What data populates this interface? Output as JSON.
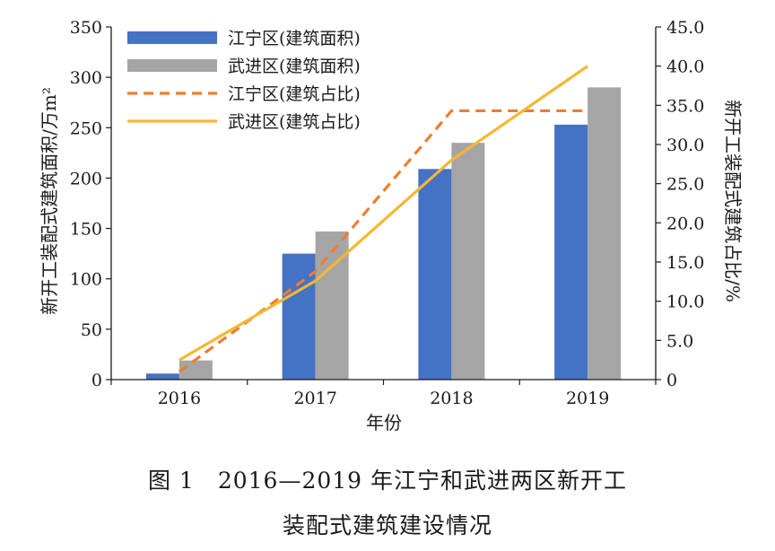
{
  "chart_data": {
    "type": "bar",
    "categories": [
      "2016",
      "2017",
      "2018",
      "2019"
    ],
    "xlabel": "年份",
    "ylabel_left": "新开工装配式建筑面积/万m²",
    "ylabel_right": "新开工装配式建筑占比/%",
    "y_left_lim": [
      0,
      350
    ],
    "y_left_ticks": [
      "0",
      "50",
      "100",
      "150",
      "200",
      "250",
      "300",
      "350"
    ],
    "y_right_lim": [
      0,
      45
    ],
    "y_right_ticks": [
      "0",
      "5.0",
      "10.0",
      "15.0",
      "20.0",
      "25.0",
      "30.0",
      "35.0",
      "40.0",
      "45.0"
    ],
    "grid": false,
    "legend_position": "top-left",
    "series": [
      {
        "name": "江宁区(建筑面积)",
        "kind": "bar",
        "axis": "left",
        "color": "#4472C4",
        "values": [
          6,
          125,
          209,
          253
        ]
      },
      {
        "name": "武进区(建筑面积)",
        "kind": "bar",
        "axis": "left",
        "color": "#A5A5A5",
        "values": [
          19,
          147,
          235,
          290
        ]
      },
      {
        "name": "江宁区(建筑占比)",
        "kind": "line",
        "style": "dashed",
        "axis": "right",
        "color": "#ED7D31",
        "values": [
          1.0,
          13.8,
          34.3,
          34.3
        ]
      },
      {
        "name": "武进区(建筑占比)",
        "kind": "line",
        "style": "solid",
        "axis": "right",
        "color": "#F6B731",
        "values": [
          2.5,
          12.6,
          28.0,
          40.0
        ]
      }
    ]
  },
  "caption": {
    "line1": "图 1　2016—2019 年江宁和武进两区新开工",
    "line2": "装配式建筑建设情况"
  }
}
